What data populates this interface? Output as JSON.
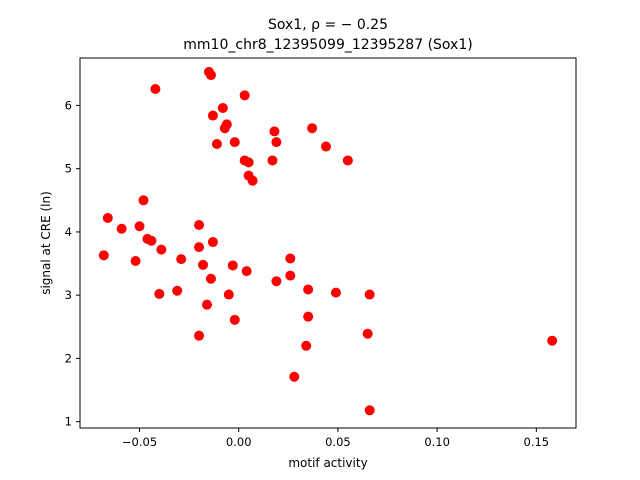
{
  "chart_data": {
    "type": "scatter",
    "title_line1": "Sox1, ρ = − 0.25",
    "title_line2": "mm10_chr8_12395099_12395287 (Sox1)",
    "xlabel": "motif activity",
    "ylabel": "signal at CRE (ln)",
    "xlim": [
      -0.08,
      0.17
    ],
    "ylim": [
      0.9,
      6.75
    ],
    "xticks": [
      -0.05,
      0.0,
      0.05,
      0.1,
      0.15
    ],
    "xtick_labels": [
      "−0.05",
      "0.00",
      "0.05",
      "0.10",
      "0.15"
    ],
    "yticks": [
      1,
      2,
      3,
      4,
      5,
      6
    ],
    "ytick_labels": [
      "1",
      "2",
      "3",
      "4",
      "5",
      "6"
    ],
    "grid": false,
    "marker_color": "#ff0000",
    "series": [
      {
        "points": [
          [
            -0.015,
            6.53
          ],
          [
            -0.014,
            6.48
          ],
          [
            -0.042,
            6.26
          ],
          [
            0.003,
            6.16
          ],
          [
            -0.008,
            5.96
          ],
          [
            -0.013,
            5.84
          ],
          [
            -0.006,
            5.7
          ],
          [
            -0.007,
            5.64
          ],
          [
            0.018,
            5.59
          ],
          [
            0.037,
            5.64
          ],
          [
            -0.011,
            5.39
          ],
          [
            -0.002,
            5.42
          ],
          [
            0.019,
            5.42
          ],
          [
            0.044,
            5.35
          ],
          [
            0.003,
            5.13
          ],
          [
            0.005,
            5.1
          ],
          [
            0.017,
            5.13
          ],
          [
            0.055,
            5.13
          ],
          [
            0.005,
            4.89
          ],
          [
            0.007,
            4.81
          ],
          [
            -0.048,
            4.5
          ],
          [
            -0.066,
            4.22
          ],
          [
            -0.059,
            4.05
          ],
          [
            -0.05,
            4.09
          ],
          [
            -0.02,
            4.11
          ],
          [
            -0.046,
            3.89
          ],
          [
            -0.044,
            3.86
          ],
          [
            -0.013,
            3.84
          ],
          [
            -0.02,
            3.76
          ],
          [
            -0.039,
            3.72
          ],
          [
            -0.068,
            3.63
          ],
          [
            -0.052,
            3.54
          ],
          [
            -0.029,
            3.57
          ],
          [
            -0.018,
            3.48
          ],
          [
            -0.003,
            3.47
          ],
          [
            0.026,
            3.58
          ],
          [
            0.004,
            3.38
          ],
          [
            0.026,
            3.31
          ],
          [
            -0.014,
            3.26
          ],
          [
            0.019,
            3.22
          ],
          [
            -0.04,
            3.02
          ],
          [
            -0.031,
            3.07
          ],
          [
            -0.005,
            3.01
          ],
          [
            0.035,
            3.09
          ],
          [
            0.049,
            3.04
          ],
          [
            0.066,
            3.01
          ],
          [
            -0.016,
            2.85
          ],
          [
            0.035,
            2.66
          ],
          [
            -0.002,
            2.61
          ],
          [
            -0.02,
            2.36
          ],
          [
            0.065,
            2.39
          ],
          [
            0.034,
            2.2
          ],
          [
            0.158,
            2.28
          ],
          [
            0.028,
            1.71
          ],
          [
            0.066,
            1.18
          ]
        ]
      }
    ]
  }
}
